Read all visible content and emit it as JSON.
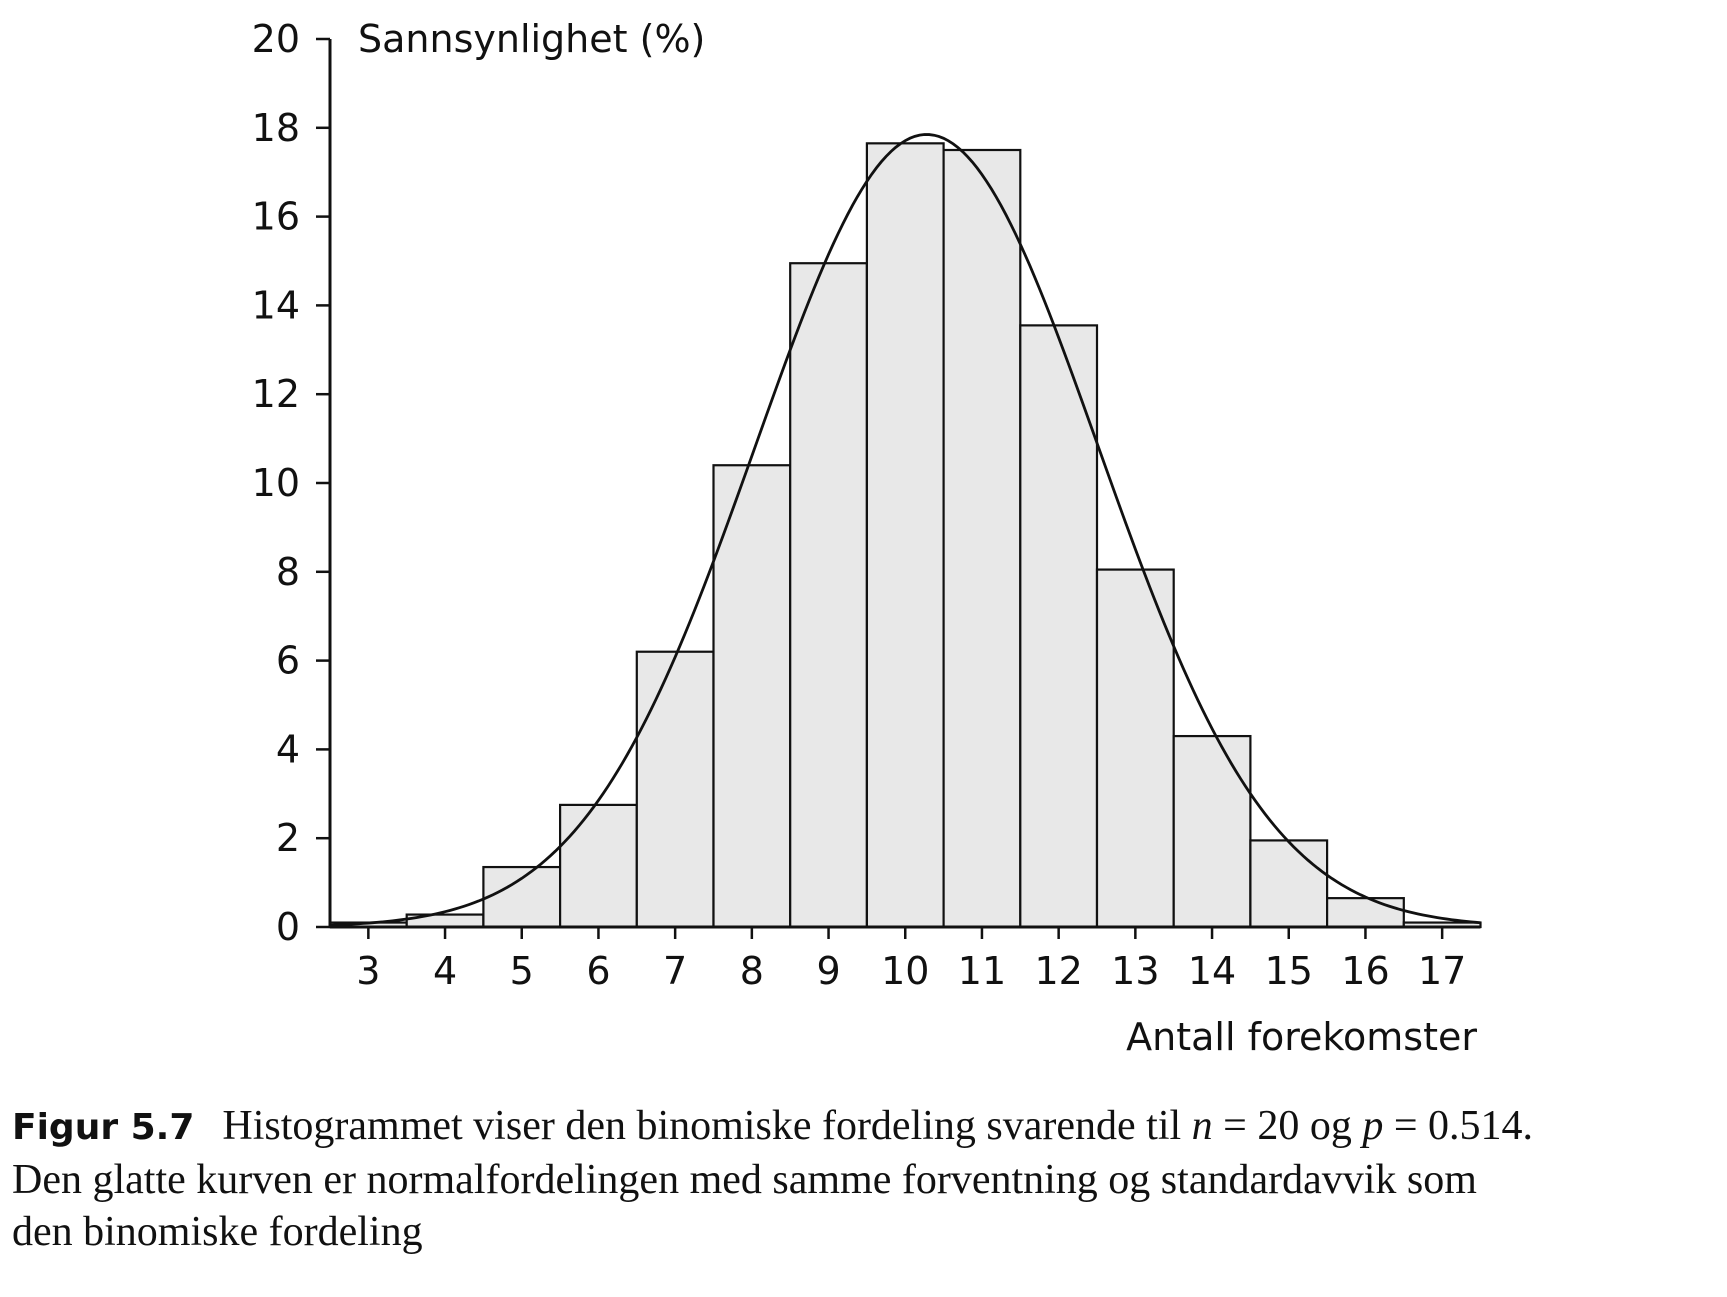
{
  "chart_data": {
    "type": "bar",
    "categories": [
      "3",
      "4",
      "5",
      "6",
      "7",
      "8",
      "9",
      "10",
      "11",
      "12",
      "13",
      "14",
      "15",
      "16",
      "17"
    ],
    "values": [
      0.1,
      0.28,
      1.35,
      2.75,
      6.2,
      10.4,
      14.95,
      17.65,
      17.5,
      13.55,
      8.05,
      4.3,
      1.95,
      0.65,
      0.1
    ],
    "series": [
      {
        "values": [
          0.1,
          0.28,
          1.35,
          2.75,
          6.2,
          10.4,
          14.95,
          17.65,
          17.5,
          13.55,
          8.05,
          4.3,
          1.95,
          0.65,
          0.1
        ]
      }
    ],
    "overlay_curve": {
      "type": "normal",
      "mean": 10.28,
      "sd": 2.235
    },
    "ylabel": "Sannsynlighet (%)",
    "xlabel": "Antall forekomster",
    "ylim": [
      0,
      20
    ],
    "yticks": [
      "0",
      "2",
      "4",
      "6",
      "8",
      "10",
      "12",
      "14",
      "16",
      "18",
      "20"
    ],
    "grid": false,
    "colors": {
      "bar_fill": "#e8e8e8",
      "stroke": "#111111"
    }
  },
  "caption": {
    "label": "Figur 5.7",
    "line1_text": "Histogrammet viser den binomiske fordeling svarende til ",
    "n_symbol": "n",
    "eq1": " = 20 og ",
    "p_symbol": "p",
    "eq2": " = 0.514.",
    "line2": "Den glatte kurven er normalfordelingen med samme forventning og standardavvik som",
    "line3": "den binomiske fordeling"
  }
}
